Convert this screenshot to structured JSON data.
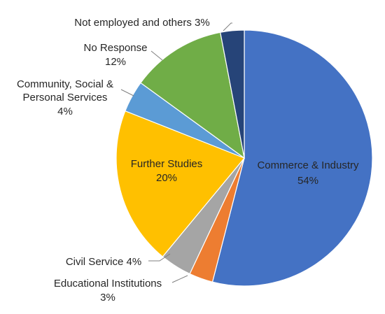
{
  "chart_data": {
    "type": "pie",
    "title": "",
    "slices": [
      {
        "name": "Commerce & Industry",
        "value": 54,
        "label": "Commerce & Industry",
        "value_label": "54%",
        "color": "#4472C4"
      },
      {
        "name": "Educational Institutions",
        "value": 3,
        "label": "Educational Institutions",
        "value_label": "3%",
        "color": "#ED7D31"
      },
      {
        "name": "Civil Service",
        "value": 4,
        "label": "Civil Service 4%",
        "value_label": "",
        "color": "#A5A5A5"
      },
      {
        "name": "Further Studies",
        "value": 20,
        "label": "Further Studies",
        "value_label": "20%",
        "color": "#FFC000"
      },
      {
        "name": "Community, Social & Personal Services",
        "value": 4,
        "label": "Community, Social &",
        "label_line2": "Personal Services",
        "value_label": "4%",
        "color": "#5B9BD5"
      },
      {
        "name": "No Response",
        "value": 12,
        "label": "No Response",
        "value_label": "12%",
        "color": "#70AD47"
      },
      {
        "name": "Not employed and others",
        "value": 3,
        "label": "Not employed and others 3%",
        "value_label": "",
        "color": "#264478"
      }
    ]
  }
}
